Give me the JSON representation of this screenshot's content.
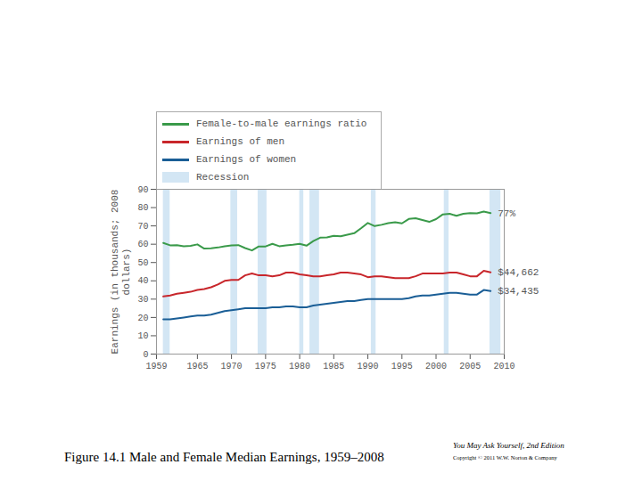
{
  "chart_data": {
    "type": "line",
    "title": "Figure 14.1 Male and Female Median Earnings, 1959–2008",
    "source": "You May Ask Yourself, 2nd Edition",
    "copyright": "Copyright © 2011 W.W. Norton & Company",
    "y_label": "Earnings (in thousands; 2008 dollars)",
    "legend": "top-left",
    "grid": false,
    "x": [
      1960,
      1961,
      1962,
      1963,
      1964,
      1965,
      1966,
      1967,
      1968,
      1969,
      1970,
      1971,
      1972,
      1973,
      1974,
      1975,
      1976,
      1977,
      1978,
      1979,
      1980,
      1981,
      1982,
      1983,
      1984,
      1985,
      1986,
      1987,
      1988,
      1989,
      1990,
      1991,
      1992,
      1993,
      1994,
      1995,
      1996,
      1997,
      1998,
      1999,
      2000,
      2001,
      2002,
      2003,
      2004,
      2005,
      2006,
      2007,
      2008
    ],
    "series": [
      {
        "name": "Female-to-male earnings ratio",
        "color": "#3a9a4a",
        "values": [
          60.7,
          59.4,
          59.5,
          58.9,
          59.1,
          59.9,
          57.6,
          57.8,
          58.2,
          58.9,
          59.4,
          59.5,
          57.9,
          56.6,
          58.8,
          58.8,
          60.2,
          58.9,
          59.4,
          59.7,
          60.2,
          59.2,
          61.7,
          63.6,
          63.7,
          64.6,
          64.3,
          65.2,
          66.0,
          68.7,
          71.6,
          69.9,
          70.6,
          71.5,
          72.0,
          71.4,
          73.8,
          74.2,
          73.2,
          72.2,
          73.7,
          76.3,
          76.6,
          75.5,
          76.6,
          77.0,
          76.9,
          77.8,
          77
        ],
        "value_labels": [
          null,
          null,
          null,
          null,
          null,
          null,
          null,
          null,
          null,
          null,
          null,
          null,
          null,
          null,
          null,
          null,
          null,
          null,
          null,
          null,
          null,
          null,
          null,
          null,
          null,
          null,
          null,
          null,
          null,
          null,
          null,
          null,
          null,
          null,
          null,
          null,
          null,
          null,
          null,
          null,
          null,
          null,
          null,
          null,
          null,
          null,
          null,
          null,
          "77%"
        ]
      },
      {
        "name": "Earnings of men",
        "color": "#c8262b",
        "values": [
          31.5,
          32,
          33,
          33.5,
          34,
          35,
          35.5,
          36.5,
          38,
          40,
          40.5,
          40.5,
          43,
          44,
          43,
          43,
          42.5,
          43,
          44.5,
          44.5,
          43.5,
          43,
          42.5,
          42.5,
          43,
          43.5,
          44.5,
          44.5,
          44,
          43.5,
          42,
          42.5,
          42.5,
          42,
          41.5,
          41.5,
          41.5,
          42.5,
          44,
          44,
          44,
          44,
          44.5,
          44.5,
          43.5,
          42.5,
          42.5,
          45.5,
          44.662
        ],
        "value_labels": [
          null,
          null,
          null,
          null,
          null,
          null,
          null,
          null,
          null,
          null,
          null,
          null,
          null,
          null,
          null,
          null,
          null,
          null,
          null,
          null,
          null,
          null,
          null,
          null,
          null,
          null,
          null,
          null,
          null,
          null,
          null,
          null,
          null,
          null,
          null,
          null,
          null,
          null,
          null,
          null,
          null,
          null,
          null,
          null,
          null,
          null,
          null,
          null,
          "$44,662"
        ]
      },
      {
        "name": "Earnings of women",
        "color": "#1a5e96",
        "values": [
          19,
          19,
          19.5,
          20,
          20.5,
          21,
          21,
          21.5,
          22.5,
          23.5,
          24,
          24.5,
          25,
          25,
          25,
          25,
          25.5,
          25.5,
          26,
          26,
          25.5,
          25.5,
          26.5,
          27,
          27.5,
          28,
          28.5,
          29,
          29,
          29.5,
          30,
          30,
          30,
          30,
          30,
          30,
          30.5,
          31.5,
          32,
          32,
          32.5,
          33,
          33.5,
          33.5,
          33,
          32.5,
          32.5,
          35,
          34.435
        ],
        "value_labels": [
          null,
          null,
          null,
          null,
          null,
          null,
          null,
          null,
          null,
          null,
          null,
          null,
          null,
          null,
          null,
          null,
          null,
          null,
          null,
          null,
          null,
          null,
          null,
          null,
          null,
          null,
          null,
          null,
          null,
          null,
          null,
          null,
          null,
          null,
          null,
          null,
          null,
          null,
          null,
          null,
          null,
          null,
          null,
          null,
          null,
          null,
          null,
          null,
          "$34,435"
        ]
      }
    ],
    "recessions": {
      "name": "Recession",
      "color": "#d3e6f4",
      "periods": [
        [
          1960,
          1961
        ],
        [
          1969.9,
          1970.9
        ],
        [
          1973.9,
          1975.2
        ],
        [
          1980,
          1980.6
        ],
        [
          1981.5,
          1982.9
        ],
        [
          1990.5,
          1991.2
        ],
        [
          2001.2,
          2001.9
        ],
        [
          2007.9,
          2009.5
        ]
      ]
    },
    "xlim": [
      1959,
      2010
    ],
    "xticks": [
      1959,
      1965,
      1970,
      1975,
      1980,
      1985,
      1990,
      1995,
      2000,
      2005,
      2010
    ],
    "ylim": [
      0,
      90
    ],
    "yticks": [
      0,
      10,
      20,
      30,
      40,
      50,
      60,
      70,
      80,
      90
    ]
  }
}
